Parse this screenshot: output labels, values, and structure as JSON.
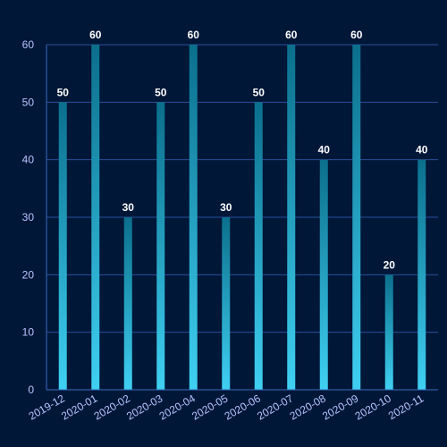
{
  "chart_data": {
    "type": "bar",
    "categories": [
      "2019-12",
      "2020-01",
      "2020-02",
      "2020-03",
      "2020-04",
      "2020-05",
      "2020-06",
      "2020-07",
      "2020-08",
      "2020-09",
      "2020-10",
      "2020-11"
    ],
    "values": [
      50,
      60,
      30,
      50,
      60,
      30,
      50,
      60,
      40,
      60,
      20,
      40
    ],
    "ylim": [
      0,
      60
    ],
    "yticks": [
      0,
      10,
      20,
      30,
      40,
      50,
      60
    ],
    "grid": true,
    "data_labels": true,
    "colors": {
      "background": "#001738",
      "bar_top": "#0b6f8c",
      "bar_bottom": "#3fd0f2",
      "grid": "#2a4f9a",
      "axis": "#3a6bc0",
      "tick_label": "#b9c4ff",
      "data_label": "#ffffff"
    }
  }
}
